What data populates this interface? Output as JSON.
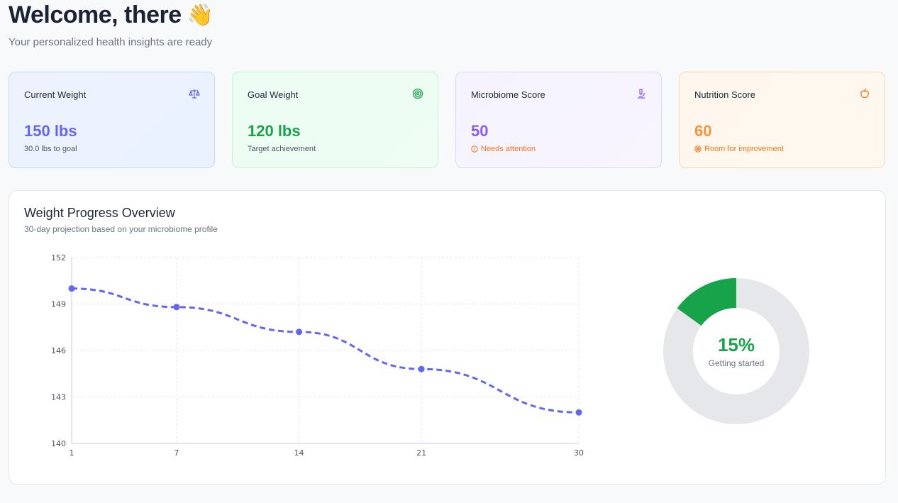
{
  "header": {
    "welcome": "Welcome, there",
    "wave_emoji": "👋",
    "subtitle": "Your personalized health insights are ready"
  },
  "cards": [
    {
      "title": "Current Weight",
      "value": "150 lbs",
      "note": "30.0 lbs to goal",
      "icon": "scale-icon"
    },
    {
      "title": "Goal Weight",
      "value": "120 lbs",
      "note": "Target achievement",
      "icon": "target-icon"
    },
    {
      "title": "Microbiome Score",
      "value": "50",
      "note": "Needs attention",
      "icon": "microscope-icon"
    },
    {
      "title": "Nutrition Score",
      "value": "60",
      "note": "Room for improvement",
      "icon": "apple-icon"
    }
  ],
  "colors": {
    "blue": "#6366f1",
    "green": "#16a34a",
    "purple": "#8b5cf6",
    "orange": "#fb923c",
    "grey": "#e5e7eb"
  },
  "progress_panel": {
    "title": "Weight Progress Overview",
    "subtitle": "30-day projection based on your microbiome profile",
    "progress_percent": 15,
    "progress_text": "15%",
    "progress_label": "Getting started"
  },
  "chart_data": {
    "type": "line",
    "title": "Weight Progress Overview",
    "x": [
      1,
      7,
      14,
      21,
      30
    ],
    "x_ticks": [
      "1",
      "7",
      "14",
      "21",
      "30"
    ],
    "values": [
      150,
      148.8,
      147.2,
      144.8,
      142
    ],
    "y_ticks": [
      140,
      143,
      146,
      149,
      152
    ],
    "ylim": [
      140,
      152
    ],
    "xlim": [
      1,
      30
    ],
    "grid": true,
    "series_style": "dashed"
  }
}
